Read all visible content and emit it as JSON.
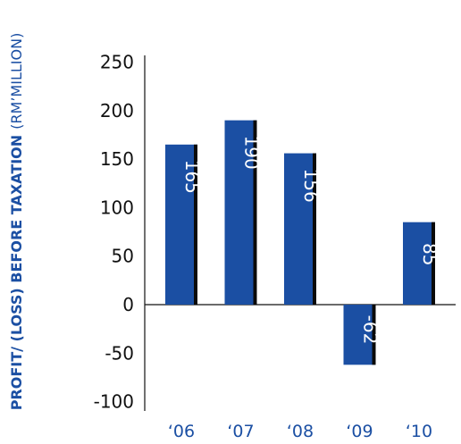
{
  "chart_data": {
    "type": "bar",
    "categories": [
      "‘06",
      "‘07",
      "‘08",
      "‘09",
      "‘10"
    ],
    "values": [
      165,
      190,
      156,
      -62,
      85
    ],
    "value_labels": [
      "165",
      "190",
      "156",
      "-62",
      "85"
    ],
    "ylabel_main": "PROFIT/ (LOSS) BEFORE TAXATION",
    "ylabel_unit": "(RM’MILLION)",
    "yticks": [
      250,
      200,
      150,
      100,
      50,
      0,
      -50,
      -100
    ],
    "ytick_labels": [
      "250",
      "200",
      "150",
      "100",
      "50",
      "0",
      "-50",
      "-100"
    ],
    "ylim": [
      -110,
      250
    ],
    "grid": false,
    "legend": "none"
  },
  "colors": {
    "bar": "#1b4fa3",
    "bar_shadow": "#0a0a0a",
    "axis": "#111111",
    "label": "#1b4fa3"
  }
}
